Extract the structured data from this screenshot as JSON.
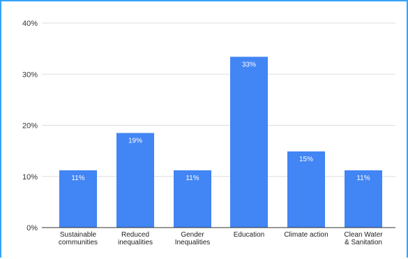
{
  "chart_data": {
    "type": "bar",
    "categories": [
      [
        "Sustainable",
        "communities"
      ],
      [
        "Reduced",
        "inequalities"
      ],
      [
        "Gender",
        "Inequalities"
      ],
      [
        "Education"
      ],
      [
        "Climate action"
      ],
      [
        "Clean Water",
        "& Sanitation"
      ]
    ],
    "values": [
      11,
      19,
      11,
      33,
      15,
      11
    ],
    "value_max": [
      11.2,
      18.5,
      11.2,
      33.4,
      14.9,
      11.2
    ],
    "data_labels": [
      "11%",
      "19%",
      "11%",
      "33%",
      "15%",
      "11%"
    ],
    "y_ticks": [
      0,
      10,
      20,
      30,
      40
    ],
    "y_tick_labels": [
      "0%",
      "10%",
      "20%",
      "30%",
      "40%"
    ],
    "ylim": [
      0,
      40
    ],
    "grid": true,
    "legend": "none",
    "colors": {
      "bar": "#4285f4",
      "grid": "#dddddd",
      "axis": "#333333",
      "border": "#36a3f7"
    }
  }
}
